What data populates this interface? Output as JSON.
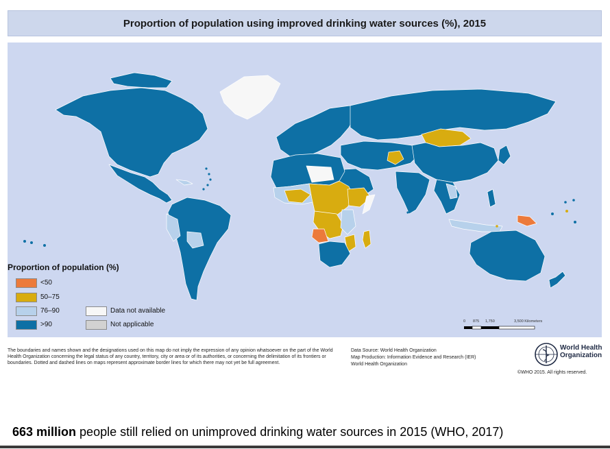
{
  "map": {
    "title": "Proportion of population using improved drinking water sources (%), 2015",
    "colors": {
      "ocean": "#cdd7f0",
      "below_50": "#ec7a3b",
      "range_50_75": "#d8ac10",
      "range_76_90": "#b7d1eb",
      "above_90": "#0e70a5",
      "not_available": "#f7f7f7",
      "not_applicable": "#d2d2d2",
      "border": "#ffffff"
    },
    "legend": {
      "title": "Proportion of population (%)",
      "items": [
        {
          "label": "<50",
          "color": "#ec7a3b"
        },
        {
          "label": "50–75",
          "color": "#d8ac10"
        },
        {
          "label": "76–90",
          "color": "#b7d1eb"
        },
        {
          "label": ">90",
          "color": "#0e70a5"
        },
        {
          "label": "Data not available",
          "color": "#f7f7f7"
        },
        {
          "label": "Not applicable",
          "color": "#d2d2d2"
        }
      ]
    },
    "scale_bar": {
      "ticks": [
        "0",
        "875",
        "1,750",
        "3,500 Kilometers"
      ]
    }
  },
  "footer": {
    "disclaimer": "The boundaries and names shown and the designations used on this map do not imply the expression of any opinion whatsoever on the part of the World Health Organization concerning the legal status of any country, territory, city or area or of its authorities, or concerning the delimitation of its frontiers or boundaries. Dotted and dashed lines on maps represent approximate border lines for which there may not yet be full agreement.",
    "data_source": "Data Source: World Health Organization",
    "map_production": "Map Production: Information Evidence and Research (IER)",
    "organization": "World Health Organization",
    "who_name_line1": "World Health",
    "who_name_line2": "Organization",
    "copyright": "©WHO 2015. All rights reserved."
  },
  "caption": {
    "bold": "663 million",
    "rest": " people still relied on unimproved drinking water sources in 2015 (WHO, 2017)"
  }
}
